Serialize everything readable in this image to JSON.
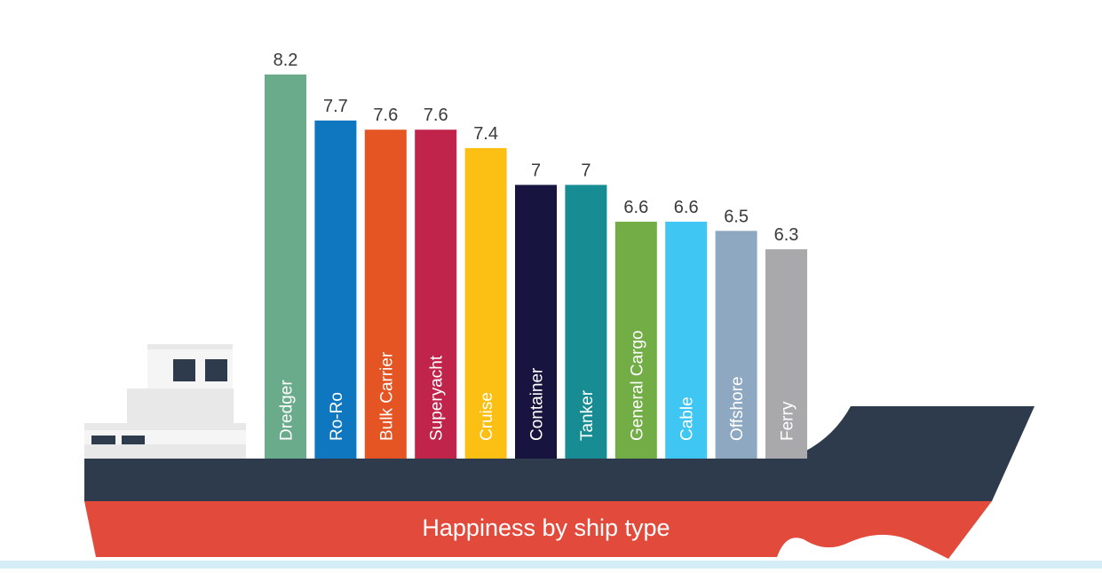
{
  "chart_data": {
    "type": "bar",
    "title": "Happiness by ship type",
    "categories": [
      "Dredger",
      "Ro-Ro",
      "Bulk Carrier",
      "Superyacht",
      "Cruise",
      "Container",
      "Tanker",
      "General Cargo",
      "Cable",
      "Offshore",
      "Ferry"
    ],
    "values": [
      8.2,
      7.7,
      7.6,
      7.6,
      7.4,
      7,
      7,
      6.6,
      6.6,
      6.5,
      6.3
    ],
    "value_labels": [
      "8.2",
      "7.7",
      "7.6",
      "7.6",
      "7.4",
      "7",
      "7",
      "6.6",
      "6.6",
      "6.5",
      "6.3"
    ],
    "colors": [
      "#6aab8b",
      "#0f76c0",
      "#e55423",
      "#c0244b",
      "#fcbf13",
      "#17153f",
      "#178c92",
      "#72ad45",
      "#40c6f2",
      "#8fa8c2",
      "#a9a9ab"
    ],
    "xlabel": "",
    "ylabel": "",
    "grid": false
  },
  "theme": {
    "hull_dark": "#2d3b4c",
    "hull_red": "#e24a3b",
    "cabin_light": "#e8e8e8",
    "cabin_top": "#f5f5f5",
    "window": "#2d3b4c",
    "water": "#d4edf7",
    "title_color": "#ffffff",
    "value_label_color": "#3a3a3a",
    "bar_label_color": "#ffffff"
  }
}
